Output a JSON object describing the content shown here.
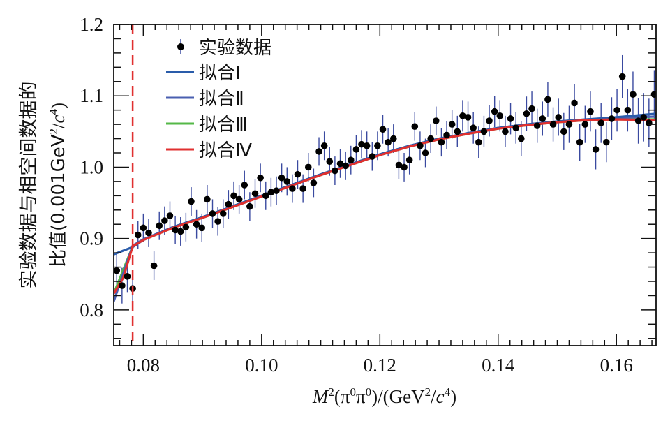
{
  "chart_data": {
    "type": "scatter",
    "title": "",
    "xlabel": "M²(π⁰π⁰)/(GeV²/c⁴)",
    "xlabel_parts": {
      "M": "M",
      "sup1": "2",
      "mid": "(π",
      "sup2": "0",
      "pi2": "π",
      "sup3": "0",
      "close": ")/(GeV",
      "sup4": "2",
      "slash": "/",
      "c": "c",
      "sup5": "4",
      "end": ")"
    },
    "ylabel_line1": "实验数据与相空间数据的",
    "ylabel_line2_pre": "比值(0.001GeV",
    "ylabel_line2_sup1": "2",
    "ylabel_line2_mid": "/",
    "ylabel_line2_c": "c",
    "ylabel_line2_sup2": "4",
    "ylabel_line2_end": ")",
    "xlim": [
      0.075,
      0.1667
    ],
    "ylim": [
      0.75,
      1.2
    ],
    "xticks": [
      0.08,
      0.1,
      0.12,
      0.14,
      0.16
    ],
    "xtick_labels": [
      "0.08",
      "0.10",
      "0.12",
      "0.14",
      "0.16"
    ],
    "yticks": [
      0.8,
      0.9,
      1.0,
      1.1,
      1.2
    ],
    "ytick_labels": [
      "0.8",
      "0.9",
      "1.0",
      "1.1",
      "1.2"
    ],
    "grid": false,
    "legend_position": "top-left",
    "threshold_line": {
      "x": 0.0782,
      "style": "dashed",
      "color": "#e03030"
    },
    "legend": [
      {
        "label": "实验数据",
        "type": "marker",
        "color": "#000000"
      },
      {
        "label": "拟合Ⅰ",
        "type": "line",
        "color": "#2a5caa"
      },
      {
        "label": "拟合Ⅱ",
        "type": "line",
        "color": "#4a5fb0"
      },
      {
        "label": "拟合Ⅲ",
        "type": "line",
        "color": "#55b848"
      },
      {
        "label": "拟合Ⅳ",
        "type": "line",
        "color": "#e03030"
      }
    ],
    "series": [
      {
        "name": "实验数据",
        "kind": "errorbar",
        "color": "#000000",
        "errcolor": "#3a4aa0",
        "x": [
          0.0755,
          0.0764,
          0.0773,
          0.0782,
          0.0791,
          0.08,
          0.0809,
          0.0818,
          0.0827,
          0.0836,
          0.0845,
          0.0854,
          0.0863,
          0.0872,
          0.0881,
          0.089,
          0.0899,
          0.0908,
          0.0917,
          0.0926,
          0.0935,
          0.0944,
          0.0953,
          0.0962,
          0.0971,
          0.098,
          0.0989,
          0.0998,
          0.1007,
          0.1016,
          0.1025,
          0.1034,
          0.1043,
          0.1052,
          0.1061,
          0.107,
          0.1079,
          0.1088,
          0.1097,
          0.1106,
          0.1115,
          0.1124,
          0.1133,
          0.1142,
          0.1151,
          0.116,
          0.1169,
          0.1178,
          0.1187,
          0.1196,
          0.1205,
          0.1214,
          0.1223,
          0.1232,
          0.1241,
          0.125,
          0.1259,
          0.1268,
          0.1277,
          0.1286,
          0.1295,
          0.1304,
          0.1313,
          0.1322,
          0.1331,
          0.134,
          0.1349,
          0.1358,
          0.1367,
          0.1376,
          0.1385,
          0.1394,
          0.1403,
          0.1412,
          0.1421,
          0.143,
          0.1439,
          0.1448,
          0.1457,
          0.1466,
          0.1475,
          0.1484,
          0.1493,
          0.1502,
          0.1511,
          0.152,
          0.1529,
          0.1538,
          0.1547,
          0.1556,
          0.1565,
          0.1574,
          0.1583,
          0.1592,
          0.1601,
          0.161,
          0.1619,
          0.1628,
          0.1637,
          0.1646,
          0.1655,
          0.1664
        ],
        "y": [
          0.855,
          0.834,
          0.847,
          0.83,
          0.905,
          0.915,
          0.908,
          0.862,
          0.918,
          0.925,
          0.932,
          0.912,
          0.91,
          0.916,
          0.952,
          0.92,
          0.915,
          0.955,
          0.935,
          0.924,
          0.935,
          0.948,
          0.96,
          0.955,
          0.975,
          0.945,
          0.963,
          0.985,
          0.96,
          0.965,
          0.967,
          0.985,
          0.98,
          0.97,
          0.99,
          0.97,
          1.0,
          0.978,
          1.022,
          1.03,
          1.008,
          0.995,
          1.005,
          1.002,
          1.01,
          1.025,
          1.032,
          1.03,
          1.015,
          1.03,
          1.053,
          1.035,
          1.04,
          1.003,
          1.0,
          1.01,
          1.057,
          1.03,
          1.02,
          1.04,
          1.065,
          1.035,
          1.045,
          1.06,
          1.05,
          1.072,
          1.07,
          1.055,
          1.035,
          1.05,
          1.065,
          1.078,
          1.072,
          1.05,
          1.068,
          1.055,
          1.04,
          1.075,
          1.082,
          1.058,
          1.068,
          1.095,
          1.06,
          1.07,
          1.05,
          1.06,
          1.09,
          1.035,
          1.06,
          1.078,
          1.025,
          1.062,
          1.035,
          1.068,
          1.08,
          1.127,
          1.08,
          1.102,
          1.065,
          1.07,
          1.062,
          1.102
        ],
        "err": [
          0.025,
          0.025,
          0.022,
          0.022,
          0.02,
          0.02,
          0.02,
          0.02,
          0.02,
          0.02,
          0.02,
          0.02,
          0.02,
          0.02,
          0.02,
          0.02,
          0.02,
          0.02,
          0.02,
          0.02,
          0.02,
          0.02,
          0.02,
          0.02,
          0.02,
          0.02,
          0.02,
          0.02,
          0.02,
          0.02,
          0.02,
          0.02,
          0.02,
          0.02,
          0.02,
          0.02,
          0.02,
          0.02,
          0.02,
          0.02,
          0.02,
          0.02,
          0.02,
          0.02,
          0.02,
          0.02,
          0.02,
          0.02,
          0.02,
          0.02,
          0.02,
          0.02,
          0.02,
          0.02,
          0.02,
          0.02,
          0.02,
          0.02,
          0.02,
          0.02,
          0.02,
          0.02,
          0.02,
          0.02,
          0.022,
          0.022,
          0.022,
          0.022,
          0.022,
          0.022,
          0.022,
          0.022,
          0.022,
          0.022,
          0.022,
          0.022,
          0.024,
          0.024,
          0.024,
          0.024,
          0.024,
          0.024,
          0.024,
          0.026,
          0.026,
          0.026,
          0.026,
          0.026,
          0.026,
          0.028,
          0.028,
          0.028,
          0.028,
          0.03,
          0.03,
          0.03,
          0.03,
          0.032,
          0.032,
          0.034,
          0.034,
          0.034
        ]
      },
      {
        "name": "拟合Ⅰ",
        "kind": "line",
        "color": "#2a5caa",
        "x": [
          0.075,
          0.0782,
          0.08,
          0.085,
          0.09,
          0.095,
          0.1,
          0.105,
          0.11,
          0.115,
          0.12,
          0.125,
          0.13,
          0.135,
          0.14,
          0.145,
          0.15,
          0.155,
          0.16,
          0.1667
        ],
        "y": [
          0.878,
          0.888,
          0.898,
          0.916,
          0.93,
          0.945,
          0.96,
          0.975,
          0.99,
          1.004,
          1.018,
          1.03,
          1.04,
          1.048,
          1.055,
          1.06,
          1.064,
          1.067,
          1.07,
          1.075
        ]
      },
      {
        "name": "拟合Ⅱ",
        "kind": "line",
        "color": "#4a5fb0",
        "x": [
          0.075,
          0.0782,
          0.08,
          0.085,
          0.09,
          0.095,
          0.1,
          0.105,
          0.11,
          0.115,
          0.12,
          0.125,
          0.13,
          0.135,
          0.14,
          0.145,
          0.15,
          0.155,
          0.16,
          0.1667
        ],
        "y": [
          0.812,
          0.89,
          0.899,
          0.916,
          0.93,
          0.945,
          0.96,
          0.975,
          0.99,
          1.004,
          1.018,
          1.03,
          1.04,
          1.048,
          1.055,
          1.06,
          1.064,
          1.067,
          1.069,
          1.071
        ]
      },
      {
        "name": "拟合Ⅲ",
        "kind": "line",
        "color": "#55b848",
        "x": [
          0.075,
          0.0782,
          0.08,
          0.085,
          0.09,
          0.095,
          0.1,
          0.105,
          0.11,
          0.115,
          0.12,
          0.125,
          0.13,
          0.135,
          0.14,
          0.145,
          0.15,
          0.155,
          0.16,
          0.1667
        ],
        "y": [
          0.823,
          0.889,
          0.898,
          0.915,
          0.929,
          0.944,
          0.959,
          0.974,
          0.989,
          1.003,
          1.017,
          1.029,
          1.039,
          1.047,
          1.054,
          1.059,
          1.063,
          1.066,
          1.067,
          1.067
        ]
      },
      {
        "name": "拟合Ⅳ",
        "kind": "line",
        "color": "#e03030",
        "x": [
          0.075,
          0.0766,
          0.0782,
          0.08,
          0.085,
          0.09,
          0.095,
          0.1,
          0.105,
          0.11,
          0.115,
          0.12,
          0.125,
          0.13,
          0.135,
          0.14,
          0.145,
          0.15,
          0.155,
          0.16,
          0.1667
        ],
        "y": [
          0.823,
          0.845,
          0.889,
          0.898,
          0.915,
          0.929,
          0.944,
          0.959,
          0.974,
          0.989,
          1.003,
          1.017,
          1.029,
          1.039,
          1.047,
          1.054,
          1.059,
          1.063,
          1.066,
          1.067,
          1.066
        ]
      }
    ]
  }
}
